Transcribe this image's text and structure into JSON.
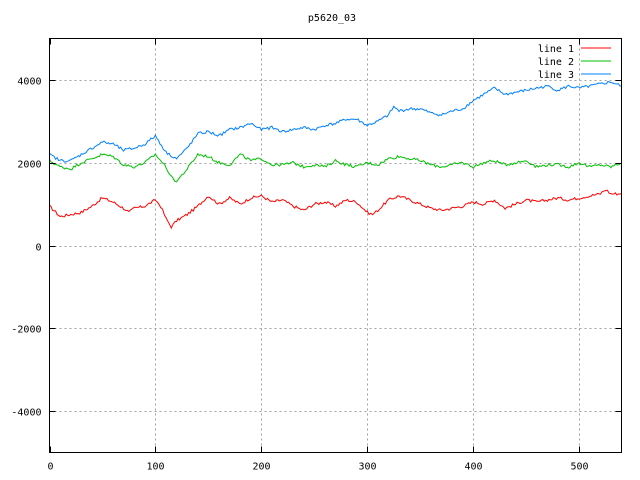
{
  "chart_data": {
    "type": "line",
    "title": "p5620_03",
    "xlabel": "",
    "ylabel": "",
    "xlim": [
      0,
      540
    ],
    "ylim": [
      -5000,
      5000
    ],
    "grid": true,
    "legend_position": "top-right",
    "x_ticks": [
      0,
      100,
      200,
      300,
      400,
      500
    ],
    "y_ticks": [
      -4000,
      -2000,
      0,
      2000,
      4000
    ],
    "series": [
      {
        "name": "line 1",
        "color": "#ff0000",
        "points": [
          [
            0,
            950
          ],
          [
            10,
            700
          ],
          [
            20,
            750
          ],
          [
            30,
            800
          ],
          [
            40,
            950
          ],
          [
            50,
            1150
          ],
          [
            60,
            1050
          ],
          [
            70,
            900
          ],
          [
            75,
            800
          ],
          [
            80,
            900
          ],
          [
            90,
            950
          ],
          [
            100,
            1100
          ],
          [
            105,
            950
          ],
          [
            110,
            650
          ],
          [
            115,
            450
          ],
          [
            120,
            600
          ],
          [
            130,
            750
          ],
          [
            140,
            950
          ],
          [
            150,
            1200
          ],
          [
            160,
            1000
          ],
          [
            170,
            1150
          ],
          [
            180,
            1000
          ],
          [
            190,
            1150
          ],
          [
            200,
            1200
          ],
          [
            210,
            1050
          ],
          [
            220,
            1100
          ],
          [
            230,
            950
          ],
          [
            240,
            850
          ],
          [
            250,
            1000
          ],
          [
            260,
            1050
          ],
          [
            270,
            950
          ],
          [
            280,
            1100
          ],
          [
            290,
            1050
          ],
          [
            300,
            800
          ],
          [
            305,
            750
          ],
          [
            310,
            850
          ],
          [
            320,
            1100
          ],
          [
            330,
            1200
          ],
          [
            340,
            1100
          ],
          [
            350,
            1000
          ],
          [
            360,
            900
          ],
          [
            370,
            850
          ],
          [
            380,
            900
          ],
          [
            390,
            950
          ],
          [
            400,
            1050
          ],
          [
            410,
            1000
          ],
          [
            420,
            1100
          ],
          [
            430,
            900
          ],
          [
            440,
            1000
          ],
          [
            450,
            1100
          ],
          [
            460,
            1050
          ],
          [
            470,
            1100
          ],
          [
            480,
            1150
          ],
          [
            490,
            1100
          ],
          [
            500,
            1150
          ],
          [
            510,
            1200
          ],
          [
            520,
            1250
          ],
          [
            525,
            1350
          ],
          [
            530,
            1250
          ],
          [
            540,
            1250
          ]
        ]
      },
      {
        "name": "line 2",
        "color": "#00c000",
        "points": [
          [
            0,
            2050
          ],
          [
            10,
            1900
          ],
          [
            20,
            1850
          ],
          [
            30,
            2000
          ],
          [
            40,
            2100
          ],
          [
            50,
            2200
          ],
          [
            60,
            2150
          ],
          [
            70,
            1950
          ],
          [
            80,
            1900
          ],
          [
            90,
            2000
          ],
          [
            100,
            2200
          ],
          [
            110,
            1900
          ],
          [
            115,
            1650
          ],
          [
            120,
            1550
          ],
          [
            125,
            1700
          ],
          [
            130,
            1850
          ],
          [
            140,
            2200
          ],
          [
            150,
            2150
          ],
          [
            160,
            2000
          ],
          [
            170,
            1950
          ],
          [
            180,
            2200
          ],
          [
            190,
            2050
          ],
          [
            200,
            2100
          ],
          [
            210,
            1950
          ],
          [
            220,
            1950
          ],
          [
            230,
            2000
          ],
          [
            240,
            1900
          ],
          [
            250,
            1950
          ],
          [
            260,
            1900
          ],
          [
            270,
            2050
          ],
          [
            280,
            1950
          ],
          [
            290,
            1900
          ],
          [
            300,
            2000
          ],
          [
            310,
            1950
          ],
          [
            320,
            2100
          ],
          [
            330,
            2150
          ],
          [
            340,
            2100
          ],
          [
            350,
            2050
          ],
          [
            360,
            1950
          ],
          [
            370,
            1900
          ],
          [
            380,
            1950
          ],
          [
            390,
            2000
          ],
          [
            400,
            1900
          ],
          [
            410,
            2000
          ],
          [
            420,
            2050
          ],
          [
            430,
            1950
          ],
          [
            440,
            2000
          ],
          [
            450,
            2050
          ],
          [
            460,
            1900
          ],
          [
            470,
            1950
          ],
          [
            480,
            1950
          ],
          [
            490,
            1900
          ],
          [
            500,
            2000
          ],
          [
            510,
            1900
          ],
          [
            520,
            1950
          ],
          [
            530,
            1900
          ],
          [
            540,
            2000
          ]
        ]
      },
      {
        "name": "line 3",
        "color": "#0080ff",
        "points": [
          [
            0,
            2200
          ],
          [
            10,
            2050
          ],
          [
            20,
            2050
          ],
          [
            30,
            2200
          ],
          [
            40,
            2350
          ],
          [
            50,
            2500
          ],
          [
            60,
            2450
          ],
          [
            70,
            2300
          ],
          [
            80,
            2350
          ],
          [
            90,
            2450
          ],
          [
            100,
            2650
          ],
          [
            110,
            2250
          ],
          [
            120,
            2100
          ],
          [
            130,
            2350
          ],
          [
            140,
            2700
          ],
          [
            150,
            2750
          ],
          [
            160,
            2650
          ],
          [
            170,
            2800
          ],
          [
            180,
            2850
          ],
          [
            190,
            2950
          ],
          [
            200,
            2800
          ],
          [
            210,
            2850
          ],
          [
            220,
            2750
          ],
          [
            230,
            2800
          ],
          [
            240,
            2850
          ],
          [
            250,
            2800
          ],
          [
            260,
            2900
          ],
          [
            270,
            2950
          ],
          [
            280,
            3050
          ],
          [
            290,
            3050
          ],
          [
            300,
            2900
          ],
          [
            310,
            3000
          ],
          [
            320,
            3150
          ],
          [
            325,
            3350
          ],
          [
            330,
            3250
          ],
          [
            340,
            3300
          ],
          [
            350,
            3300
          ],
          [
            360,
            3200
          ],
          [
            370,
            3150
          ],
          [
            380,
            3250
          ],
          [
            390,
            3300
          ],
          [
            400,
            3500
          ],
          [
            410,
            3650
          ],
          [
            420,
            3800
          ],
          [
            430,
            3650
          ],
          [
            440,
            3700
          ],
          [
            450,
            3750
          ],
          [
            460,
            3800
          ],
          [
            470,
            3850
          ],
          [
            480,
            3750
          ],
          [
            490,
            3850
          ],
          [
            500,
            3800
          ],
          [
            510,
            3850
          ],
          [
            520,
            3900
          ],
          [
            530,
            3950
          ],
          [
            540,
            3850
          ]
        ]
      }
    ]
  }
}
